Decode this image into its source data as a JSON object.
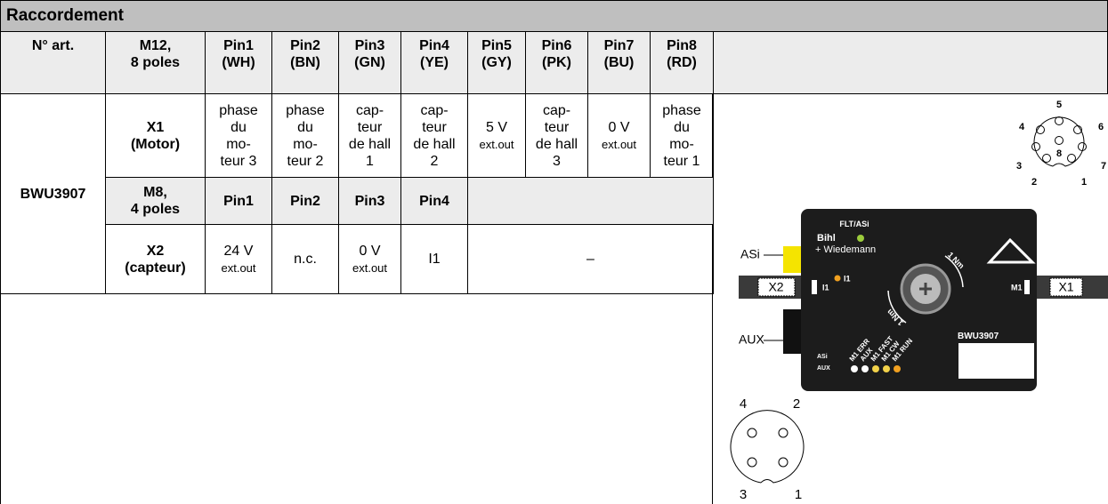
{
  "title": "Raccordement",
  "table": {
    "header": [
      "N° art.",
      "M12,\n8 poles",
      "Pin1\n(WH)",
      "Pin2\n(BN)",
      "Pin3\n(GN)",
      "Pin4\n(YE)",
      "Pin5\n(GY)",
      "Pin6\n(PK)",
      "Pin7\n(BU)",
      "Pin8\n(RD)"
    ],
    "article": "BWU3907",
    "x1": {
      "label": "X1\n(Motor)",
      "pins": [
        {
          "text": "phase\ndu\nmo-\nteur 3"
        },
        {
          "text": "phase\ndu\nmo-\nteur 2"
        },
        {
          "text": "cap-\nteur\nde hall\n1"
        },
        {
          "text": "cap-\nteur\nde hall\n2"
        },
        {
          "text": "5 V",
          "sub": "ext.out"
        },
        {
          "text": "cap-\nteur\nde hall\n3"
        },
        {
          "text": "0 V",
          "sub": "ext.out"
        },
        {
          "text": "phase\ndu\nmo-\nteur 1"
        }
      ]
    },
    "m8": {
      "label": "M8,\n4 poles",
      "pins": [
        "Pin1",
        "Pin2",
        "Pin3",
        "Pin4"
      ]
    },
    "x2": {
      "label": "X2\n(capteur)",
      "pins": [
        {
          "text": "24 V",
          "sub": "ext.out"
        },
        {
          "text": "n.c."
        },
        {
          "text": "0 V",
          "sub": "ext.out"
        },
        {
          "text": "I1"
        }
      ],
      "rest": "–"
    }
  },
  "diagram": {
    "m12_pins": [
      "5",
      "4",
      "6",
      "8",
      "3",
      "7",
      "2",
      "1"
    ],
    "m8_pins": [
      "4",
      "2",
      "3",
      "1"
    ],
    "device": {
      "led": "FLT/ASi",
      "brand1": "Bihl",
      "brand2": "+ Wiedemann",
      "asi": "ASi",
      "aux": "AUX",
      "x2": "X2",
      "x1": "X1",
      "i1": "I1",
      "i1_led": "I1",
      "m1": "M1",
      "torque_cw": "1 Nm",
      "torque_ccw": "1 Nm",
      "model": "BWU3907",
      "leds": [
        "M1 ERR",
        "AUX",
        "M1 FAST",
        "M1 CW",
        "M1 RUN"
      ],
      "supply": [
        "ASi",
        "AUX"
      ]
    }
  }
}
